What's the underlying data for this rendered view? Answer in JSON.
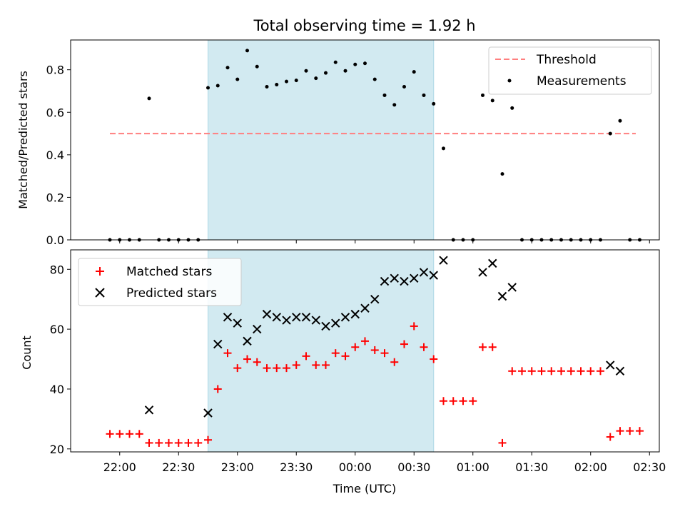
{
  "chart_data": [
    {
      "type": "scatter",
      "title": "Total observing time = 1.92 h",
      "ylabel": "Matched/Predicted stars",
      "xlabel": "",
      "ylim": [
        0.0,
        0.94
      ],
      "yticks": [
        "0.0",
        "0.2",
        "0.4",
        "0.6",
        "0.8"
      ],
      "shaded_interval": [
        "22:45",
        "00:40"
      ],
      "shade_color": "#add8e6",
      "legend_position": "upper right",
      "threshold": {
        "name": "Threshold",
        "value": 0.5,
        "x_range": [
          "21:55",
          "02:23"
        ],
        "color": "#ff7f7f"
      },
      "series": [
        {
          "name": "Measurements",
          "color": "#000000",
          "points": [
            [
              "21:55",
              0.0
            ],
            [
              "22:00",
              0.0
            ],
            [
              "22:05",
              0.0
            ],
            [
              "22:10",
              0.0
            ],
            [
              "22:15",
              0.665
            ],
            [
              "22:20",
              0.0
            ],
            [
              "22:25",
              0.0
            ],
            [
              "22:30",
              0.0
            ],
            [
              "22:35",
              0.0
            ],
            [
              "22:40",
              0.0
            ],
            [
              "22:45",
              0.715
            ],
            [
              "22:50",
              0.725
            ],
            [
              "22:55",
              0.81
            ],
            [
              "23:00",
              0.755
            ],
            [
              "23:05",
              0.89
            ],
            [
              "23:10",
              0.815
            ],
            [
              "23:15",
              0.72
            ],
            [
              "23:20",
              0.73
            ],
            [
              "23:25",
              0.745
            ],
            [
              "23:30",
              0.75
            ],
            [
              "23:35",
              0.795
            ],
            [
              "23:40",
              0.76
            ],
            [
              "23:45",
              0.785
            ],
            [
              "23:50",
              0.835
            ],
            [
              "23:55",
              0.795
            ],
            [
              "00:00",
              0.825
            ],
            [
              "00:05",
              0.83
            ],
            [
              "00:10",
              0.755
            ],
            [
              "00:15",
              0.68
            ],
            [
              "00:20",
              0.635
            ],
            [
              "00:25",
              0.72
            ],
            [
              "00:30",
              0.79
            ],
            [
              "00:35",
              0.68
            ],
            [
              "00:40",
              0.64
            ],
            [
              "00:45",
              0.43
            ],
            [
              "00:50",
              0.0
            ],
            [
              "00:55",
              0.0
            ],
            [
              "01:00",
              0.0
            ],
            [
              "01:05",
              0.68
            ],
            [
              "01:10",
              0.655
            ],
            [
              "01:15",
              0.31
            ],
            [
              "01:20",
              0.62
            ],
            [
              "01:25",
              0.0
            ],
            [
              "01:30",
              0.0
            ],
            [
              "01:35",
              0.0
            ],
            [
              "01:40",
              0.0
            ],
            [
              "01:45",
              0.0
            ],
            [
              "01:50",
              0.0
            ],
            [
              "01:55",
              0.0
            ],
            [
              "02:00",
              0.0
            ],
            [
              "02:05",
              0.0
            ],
            [
              "02:10",
              0.5
            ],
            [
              "02:15",
              0.56
            ],
            [
              "02:20",
              0.0
            ],
            [
              "02:25",
              0.0
            ]
          ]
        }
      ]
    },
    {
      "type": "scatter",
      "title": "",
      "xlabel": "Time (UTC)",
      "ylabel": "Count",
      "ylim": [
        19,
        86.5
      ],
      "yticks": [
        "20",
        "40",
        "60",
        "80"
      ],
      "xlim": [
        "21:35",
        "02:35"
      ],
      "xticks": [
        "22:00",
        "22:30",
        "23:00",
        "23:30",
        "00:00",
        "00:30",
        "01:00",
        "01:30",
        "02:00",
        "02:30"
      ],
      "shaded_interval": [
        "22:45",
        "00:40"
      ],
      "shade_color": "#add8e6",
      "legend_position": "upper left",
      "series": [
        {
          "name": "Matched stars",
          "marker": "plus",
          "color": "#ff0000",
          "points": [
            [
              "21:55",
              25
            ],
            [
              "22:00",
              25
            ],
            [
              "22:05",
              25
            ],
            [
              "22:10",
              25
            ],
            [
              "22:15",
              22
            ],
            [
              "22:20",
              22
            ],
            [
              "22:25",
              22
            ],
            [
              "22:30",
              22
            ],
            [
              "22:35",
              22
            ],
            [
              "22:40",
              22
            ],
            [
              "22:45",
              23
            ],
            [
              "22:50",
              40
            ],
            [
              "22:55",
              52
            ],
            [
              "23:00",
              47
            ],
            [
              "23:05",
              50
            ],
            [
              "23:10",
              49
            ],
            [
              "23:15",
              47
            ],
            [
              "23:20",
              47
            ],
            [
              "23:25",
              47
            ],
            [
              "23:30",
              48
            ],
            [
              "23:35",
              51
            ],
            [
              "23:40",
              48
            ],
            [
              "23:45",
              48
            ],
            [
              "23:50",
              52
            ],
            [
              "23:55",
              51
            ],
            [
              "00:00",
              54
            ],
            [
              "00:05",
              56
            ],
            [
              "00:10",
              53
            ],
            [
              "00:15",
              52
            ],
            [
              "00:20",
              49
            ],
            [
              "00:25",
              55
            ],
            [
              "00:30",
              61
            ],
            [
              "00:35",
              54
            ],
            [
              "00:40",
              50
            ],
            [
              "00:45",
              36
            ],
            [
              "00:50",
              36
            ],
            [
              "00:55",
              36
            ],
            [
              "01:00",
              36
            ],
            [
              "01:05",
              54
            ],
            [
              "01:10",
              54
            ],
            [
              "01:15",
              22
            ],
            [
              "01:20",
              46
            ],
            [
              "01:25",
              46
            ],
            [
              "01:30",
              46
            ],
            [
              "01:35",
              46
            ],
            [
              "01:40",
              46
            ],
            [
              "01:45",
              46
            ],
            [
              "01:50",
              46
            ],
            [
              "01:55",
              46
            ],
            [
              "02:00",
              46
            ],
            [
              "02:05",
              46
            ],
            [
              "02:10",
              24
            ],
            [
              "02:15",
              26
            ],
            [
              "02:20",
              26
            ],
            [
              "02:25",
              26
            ]
          ]
        },
        {
          "name": "Predicted stars",
          "marker": "x",
          "color": "#000000",
          "points": [
            [
              "22:15",
              33
            ],
            [
              "22:45",
              32
            ],
            [
              "22:50",
              55
            ],
            [
              "22:55",
              64
            ],
            [
              "23:00",
              62
            ],
            [
              "23:05",
              56
            ],
            [
              "23:10",
              60
            ],
            [
              "23:15",
              65
            ],
            [
              "23:20",
              64
            ],
            [
              "23:25",
              63
            ],
            [
              "23:30",
              64
            ],
            [
              "23:35",
              64
            ],
            [
              "23:40",
              63
            ],
            [
              "23:45",
              61
            ],
            [
              "23:50",
              62
            ],
            [
              "23:55",
              64
            ],
            [
              "00:00",
              65
            ],
            [
              "00:05",
              67
            ],
            [
              "00:10",
              70
            ],
            [
              "00:15",
              76
            ],
            [
              "00:20",
              77
            ],
            [
              "00:25",
              76
            ],
            [
              "00:30",
              77
            ],
            [
              "00:35",
              79
            ],
            [
              "00:40",
              78
            ],
            [
              "00:45",
              83
            ],
            [
              "01:05",
              79
            ],
            [
              "01:10",
              82
            ],
            [
              "01:15",
              71
            ],
            [
              "01:20",
              74
            ],
            [
              "02:10",
              48
            ],
            [
              "02:15",
              46
            ]
          ]
        }
      ]
    }
  ]
}
